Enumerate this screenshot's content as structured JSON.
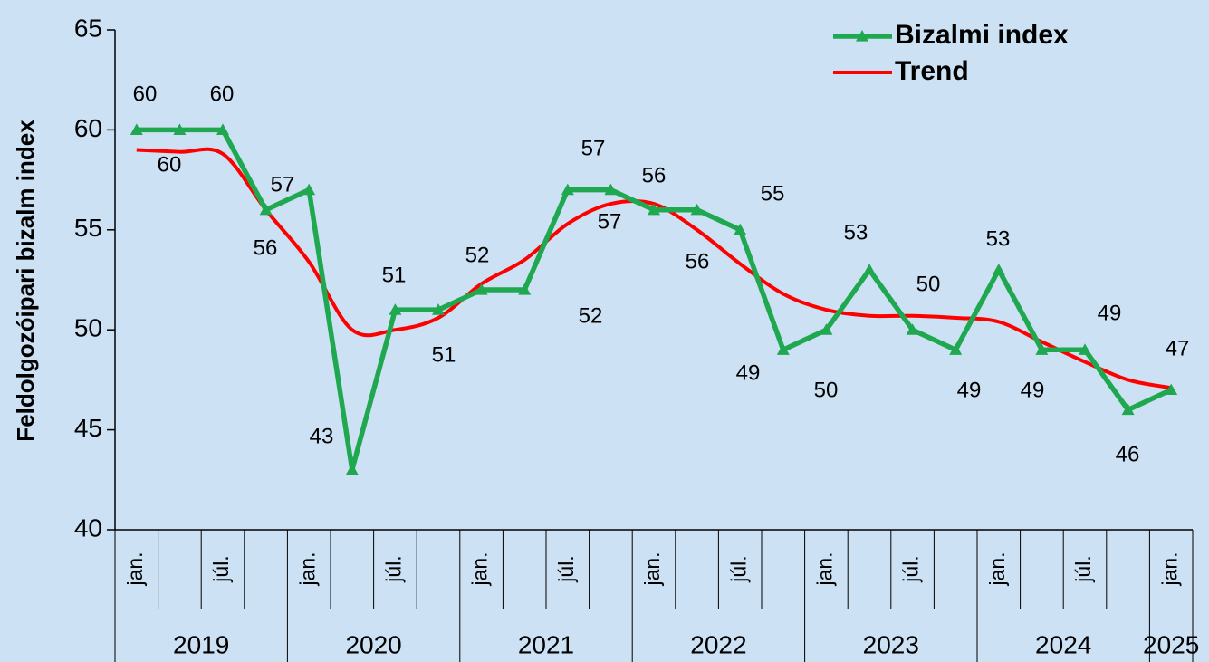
{
  "chart_data": {
    "type": "line",
    "y_label": "Feldolgozóipari bizalm index",
    "categories": [
      "jan.",
      null,
      "júl.",
      null,
      "jan.",
      null,
      "júl.",
      null,
      "jan.",
      null,
      "júl.",
      null,
      "jan.",
      null,
      "júl.",
      null,
      "jan.",
      null,
      "júl.",
      null,
      "jan.",
      null,
      "júl.",
      null,
      "jan."
    ],
    "groups": [
      {
        "label": "2019",
        "count": 4
      },
      {
        "label": "2020",
        "count": 4
      },
      {
        "label": "2021",
        "count": 4
      },
      {
        "label": "2022",
        "count": 4
      },
      {
        "label": "2023",
        "count": 4
      },
      {
        "label": "2024",
        "count": 4
      },
      {
        "label": "2025",
        "count": 1
      }
    ],
    "series": [
      {
        "name": "Bizalmi index",
        "color": "#1fa84f",
        "marker": "triangle",
        "data_labels": true,
        "values": [
          60,
          60,
          60,
          56,
          57,
          43,
          51,
          51,
          52,
          52,
          57,
          57,
          56,
          56,
          55,
          49,
          50,
          53,
          50,
          49,
          53,
          49,
          49,
          46,
          47
        ]
      },
      {
        "name": "Trend",
        "color": "#ff0000",
        "smooth": true,
        "values": [
          59,
          58.9,
          58.8,
          56,
          53.4,
          50,
          50,
          50.6,
          52.3,
          53.5,
          55.3,
          56.3,
          56.3,
          55,
          53.3,
          51.8,
          51,
          50.7,
          50.7,
          50.6,
          50.4,
          49.4,
          48.4,
          47.5,
          47.1
        ]
      }
    ],
    "ylim": [
      40,
      65
    ],
    "yticks": [
      40,
      45,
      50,
      55,
      60,
      65
    ],
    "grid": false,
    "legend": "top-right"
  }
}
